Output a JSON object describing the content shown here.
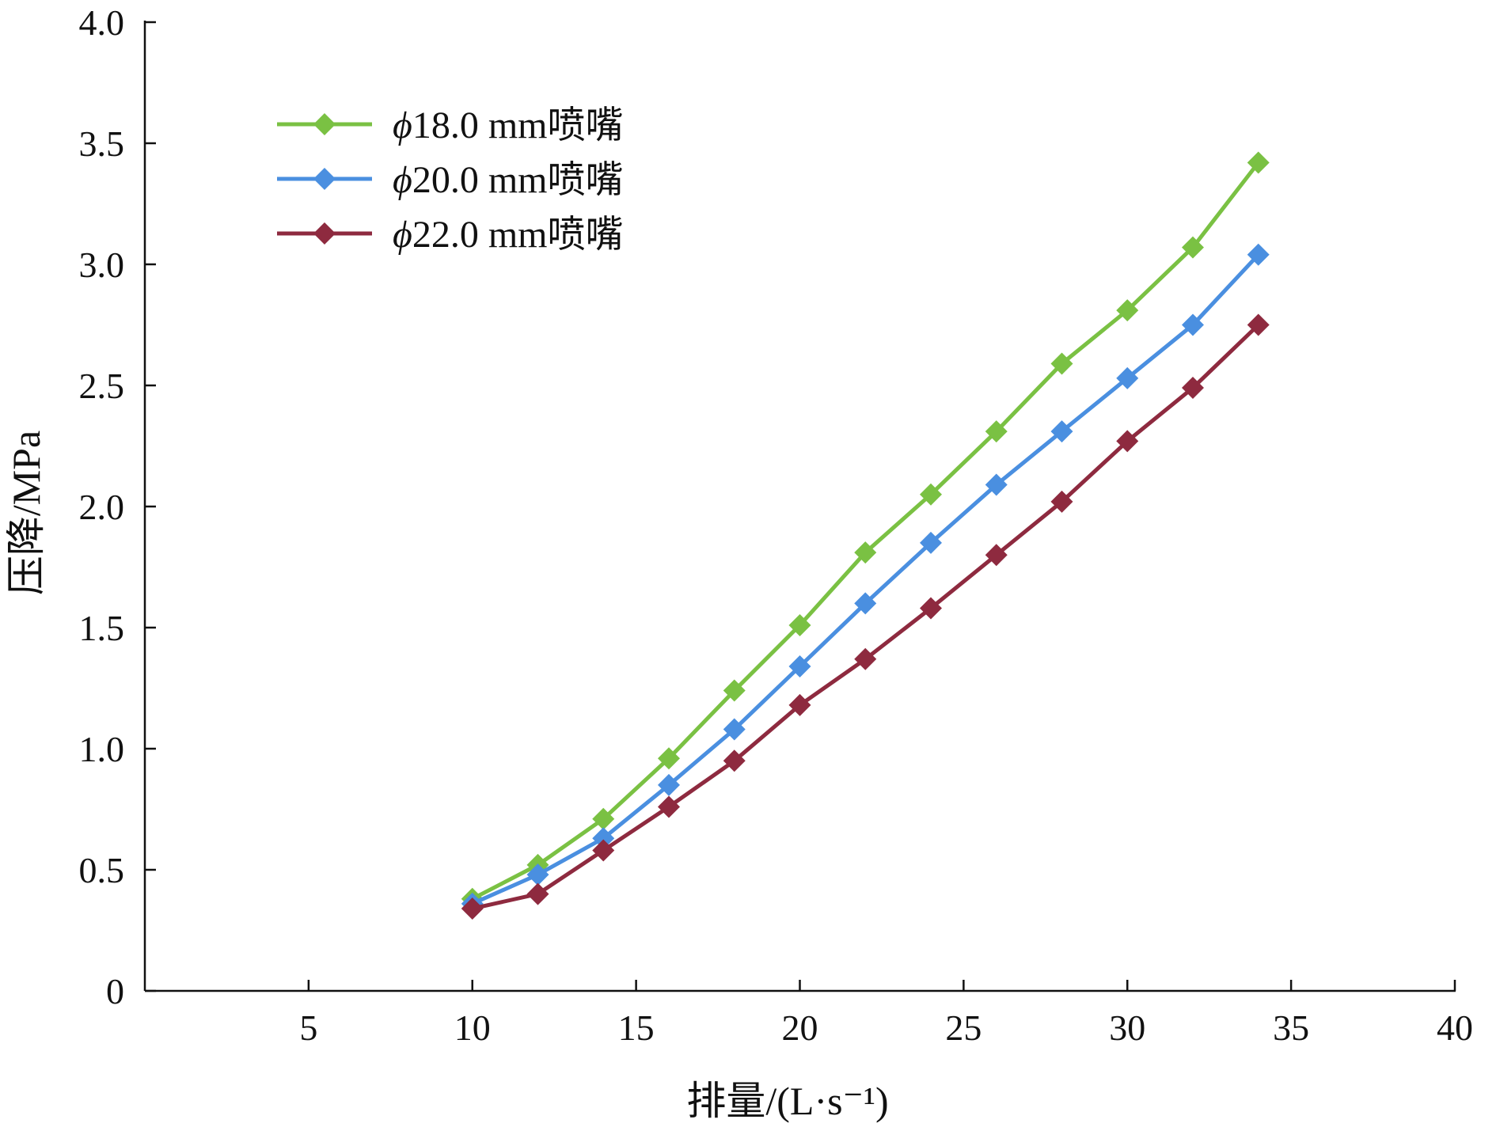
{
  "chart_data": {
    "type": "line",
    "title": "",
    "xlabel": "排量/(L·s⁻¹)",
    "ylabel": "压降/MPa",
    "xlim": [
      0,
      40
    ],
    "ylim": [
      0,
      4.0
    ],
    "x_ticks": [
      5,
      10,
      15,
      20,
      25,
      30,
      35,
      40
    ],
    "y_ticks": [
      0,
      0.5,
      1.0,
      1.5,
      2.0,
      2.5,
      3.0,
      3.5,
      4.0
    ],
    "x_tick_labels": [
      "5",
      "10",
      "15",
      "20",
      "25",
      "30",
      "35",
      "40"
    ],
    "y_tick_labels": [
      "0",
      "0.5",
      "1.0",
      "1.5",
      "2.0",
      "2.5",
      "3.0",
      "3.5",
      "4.0"
    ],
    "grid": false,
    "legend_position": "top-left",
    "x": [
      10,
      12,
      14,
      16,
      18,
      20,
      22,
      24,
      26,
      28,
      30,
      32,
      34
    ],
    "series": [
      {
        "name": "ϕ18.0 mm喷嘴",
        "color": "#7ac143",
        "values": [
          0.38,
          0.52,
          0.71,
          0.96,
          1.24,
          1.51,
          1.81,
          2.05,
          2.31,
          2.59,
          2.81,
          3.07,
          3.42
        ]
      },
      {
        "name": "ϕ20.0 mm喷嘴",
        "color": "#4a8fe0",
        "values": [
          0.36,
          0.48,
          0.63,
          0.85,
          1.08,
          1.34,
          1.6,
          1.85,
          2.09,
          2.31,
          2.53,
          2.75,
          3.04
        ]
      },
      {
        "name": "ϕ22.0 mm喷嘴",
        "color": "#8e2a3f",
        "values": [
          0.34,
          0.4,
          0.58,
          0.76,
          0.95,
          1.18,
          1.37,
          1.58,
          1.8,
          2.02,
          2.27,
          2.49,
          2.75
        ]
      }
    ]
  }
}
